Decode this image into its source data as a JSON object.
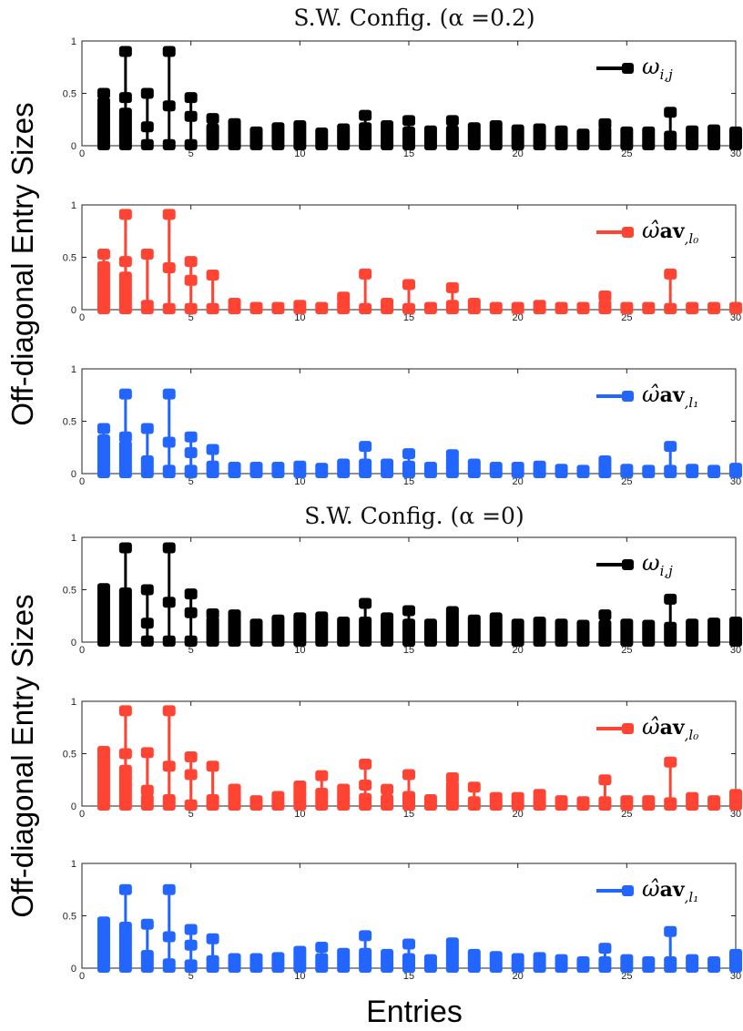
{
  "chart_data": {
    "type": "stem",
    "ylabel": "Off-diagonal Entry Sizes",
    "xlabel": "Entries",
    "xlim": [
      0,
      30
    ],
    "ylim": [
      0,
      1
    ],
    "xticks": [
      "0",
      "5",
      "10",
      "15",
      "20",
      "25",
      "30"
    ],
    "yticks": [
      "0",
      "0.5",
      "1"
    ],
    "groups": [
      {
        "title": "S.W. Config. (α =0.2)",
        "panels": [
          {
            "legend": {
              "symbol": "ω",
              "bold": "",
              "sub": "i,j"
            },
            "color": "#000000",
            "band": [
              0.42,
              0.32,
              0.02,
              0.02,
              0.02,
              0.17,
              0.22,
              0.14,
              0.18,
              0.2,
              0.13,
              0.17,
              0.18,
              0.2,
              0.14,
              0.15,
              0.15,
              0.18,
              0.2,
              0.16,
              0.17,
              0.15,
              0.12,
              0.14,
              0.14,
              0.14,
              0.1,
              0.15,
              0.16,
              0.14
            ],
            "stems": [
              [
                0.5
              ],
              [
                0.46,
                0.9
              ],
              [
                0.18,
                0.5
              ],
              [
                0.38,
                0.9
              ],
              [
                0.28,
                0.46
              ],
              [
                0.26
              ],
              [],
              [],
              [],
              [],
              [],
              [],
              [
                0.29
              ],
              [],
              [
                0.24
              ],
              [],
              [
                0.24
              ],
              [],
              [],
              [],
              [],
              [],
              [],
              [
                0.21
              ],
              [],
              [],
              [
                0.32
              ],
              [],
              [],
              []
            ]
          },
          {
            "legend": {
              "symbol": "ω̂",
              "bold": "av",
              "sub": ",l₀"
            },
            "color": "#ff4433",
            "band": [
              0.42,
              0.32,
              0.05,
              0.02,
              0.02,
              0.02,
              0.07,
              0.03,
              0.03,
              0.05,
              0.03,
              0.05,
              0.02,
              0.07,
              0.02,
              0.03,
              0.05,
              0.07,
              0.03,
              0.03,
              0.05,
              0.03,
              0.03,
              0.05,
              0.03,
              0.03,
              0.02,
              0.03,
              0.03,
              0.03
            ],
            "stems": [
              [
                0.53
              ],
              [
                0.46,
                0.91
              ],
              [
                0.53
              ],
              [
                0.4,
                0.91
              ],
              [
                0.28,
                0.46
              ],
              [
                0.33
              ],
              [],
              [],
              [],
              [],
              [],
              [
                0.12
              ],
              [
                0.34
              ],
              [],
              [
                0.24
              ],
              [],
              [
                0.21
              ],
              [],
              [],
              [],
              [],
              [],
              [],
              [
                0.13
              ],
              [],
              [],
              [
                0.34
              ],
              [],
              [],
              []
            ]
          },
          {
            "legend": {
              "symbol": "ω̂",
              "bold": "av",
              "sub": ",l₁"
            },
            "color": "#2266ff",
            "band": [
              0.33,
              0.27,
              0.13,
              0.04,
              0.04,
              0.08,
              0.07,
              0.07,
              0.07,
              0.08,
              0.06,
              0.1,
              0.1,
              0.1,
              0.08,
              0.07,
              0.12,
              0.1,
              0.07,
              0.07,
              0.08,
              0.05,
              0.04,
              0.13,
              0.05,
              0.04,
              0.04,
              0.05,
              0.04,
              0.06
            ],
            "stems": [
              [
                0.43
              ],
              [
                0.35,
                0.76
              ],
              [
                0.43
              ],
              [
                0.3,
                0.76
              ],
              [
                0.2,
                0.35
              ],
              [
                0.23
              ],
              [],
              [],
              [],
              [],
              [],
              [],
              [
                0.26
              ],
              [],
              [
                0.19
              ],
              [],
              [
                0.18
              ],
              [],
              [],
              [],
              [],
              [],
              [],
              [],
              [],
              [],
              [
                0.26
              ],
              [],
              [],
              []
            ]
          }
        ]
      },
      {
        "title": "S.W. Config. (α =0)",
        "panels": [
          {
            "legend": {
              "symbol": "ω",
              "bold": "",
              "sub": "i,j"
            },
            "color": "#000000",
            "band": [
              0.52,
              0.42,
              0.02,
              0.02,
              0.02,
              0.2,
              0.2,
              0.18,
              0.22,
              0.24,
              0.2,
              0.2,
              0.2,
              0.24,
              0.18,
              0.18,
              0.3,
              0.22,
              0.24,
              0.18,
              0.2,
              0.18,
              0.17,
              0.17,
              0.18,
              0.17,
              0.15,
              0.18,
              0.19,
              0.2
            ],
            "stems": [
              [],
              [
                0.47,
                0.9
              ],
              [
                0.18,
                0.5
              ],
              [
                0.38,
                0.9
              ],
              [
                0.28,
                0.46
              ],
              [
                0.27
              ],
              [
                0.26
              ],
              [],
              [],
              [],
              [
                0.24
              ],
              [],
              [
                0.37
              ],
              [],
              [
                0.3
              ],
              [],
              [],
              [],
              [],
              [],
              [],
              [],
              [],
              [
                0.26
              ],
              [],
              [],
              [
                0.41
              ],
              [],
              [],
              []
            ]
          },
          {
            "legend": {
              "symbol": "ω̂",
              "bold": "av",
              "sub": ",l₀"
            },
            "color": "#ff4433",
            "band": [
              0.53,
              0.35,
              0.07,
              0.07,
              0.02,
              0.07,
              0.17,
              0.06,
              0.1,
              0.2,
              0.13,
              0.17,
              0.08,
              0.07,
              0.1,
              0.07,
              0.2,
              0.05,
              0.09,
              0.09,
              0.12,
              0.06,
              0.05,
              0.05,
              0.06,
              0.06,
              0.04,
              0.09,
              0.06,
              0.12
            ],
            "stems": [
              [],
              [
                0.5,
                0.91
              ],
              [
                0.15,
                0.51
              ],
              [
                0.38,
                0.91
              ],
              [
                0.3,
                0.47
              ],
              [
                0.38
              ],
              [],
              [],
              [],
              [],
              [
                0.29
              ],
              [],
              [
                0.2,
                0.4
              ],
              [
                0.16
              ],
              [
                0.3
              ],
              [],
              [
                0.27
              ],
              [
                0.18
              ],
              [],
              [],
              [],
              [],
              [],
              [
                0.25
              ],
              [],
              [],
              [
                0.42
              ],
              [],
              [],
              []
            ]
          },
          {
            "legend": {
              "symbol": "ω̂",
              "bold": "av",
              "sub": ",l₁"
            },
            "color": "#2266ff",
            "band": [
              0.45,
              0.4,
              0.13,
              0.05,
              0.04,
              0.08,
              0.1,
              0.1,
              0.11,
              0.17,
              0.1,
              0.15,
              0.15,
              0.14,
              0.1,
              0.09,
              0.25,
              0.14,
              0.12,
              0.1,
              0.11,
              0.09,
              0.07,
              0.07,
              0.09,
              0.07,
              0.07,
              0.09,
              0.07,
              0.14
            ],
            "stems": [
              [],
              [
                0.75
              ],
              [
                0.42
              ],
              [
                0.3,
                0.75
              ],
              [
                0.22,
                0.37
              ],
              [
                0.28
              ],
              [],
              [],
              [],
              [],
              [
                0.2
              ],
              [],
              [
                0.31
              ],
              [],
              [
                0.23
              ],
              [],
              [],
              [],
              [],
              [],
              [],
              [],
              [],
              [
                0.19
              ],
              [],
              [],
              [
                0.35
              ],
              [],
              [],
              []
            ]
          }
        ]
      }
    ]
  }
}
